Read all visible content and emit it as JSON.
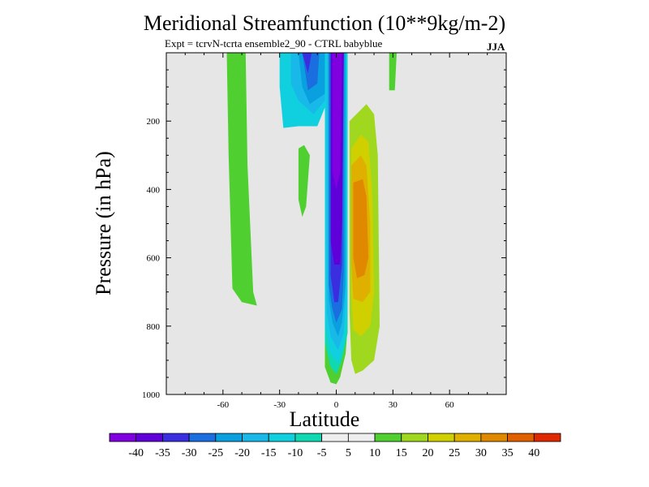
{
  "chart_data": {
    "type": "contour",
    "title": "Meridional Streamfunction (10**9kg/m-2)",
    "subtitle": "Expt = tcrvN-tcrta ensemble2_90 - CTRL babyblue",
    "season": "JJA",
    "xlabel": "Latitude",
    "ylabel": "Pressure (in hPa)",
    "xlim": [
      -90,
      90
    ],
    "ylim": [
      1000,
      0
    ],
    "x_ticks": [
      -60,
      -30,
      0,
      30,
      60
    ],
    "y_ticks": [
      200,
      400,
      600,
      800,
      1000
    ],
    "colorbar": {
      "labels": [
        "-40",
        "-35",
        "-30",
        "-25",
        "-20",
        "-15",
        "-10",
        "-5",
        "5",
        "10",
        "15",
        "20",
        "25",
        "30",
        "35",
        "40"
      ],
      "colors": [
        "#8000e0",
        "#6000d8",
        "#3a2ee0",
        "#1a6ee0",
        "#0aa0e0",
        "#18b8e8",
        "#10d0e0",
        "#10d8b0",
        "#eeeeee",
        "#50d030",
        "#a0d820",
        "#d0d000",
        "#e0b000",
        "#e08800",
        "#e06000",
        "#e02800"
      ]
    },
    "regions": [
      {
        "level": 5,
        "polygon": [
          [
            -58,
            0
          ],
          [
            -48,
            0
          ],
          [
            -47,
            330
          ],
          [
            -44,
            700
          ],
          [
            -42,
            740
          ],
          [
            -50,
            730
          ],
          [
            -55,
            690
          ],
          [
            -57,
            300
          ]
        ]
      },
      {
        "level": 5,
        "polygon": [
          [
            -20,
            280
          ],
          [
            -17,
            270
          ],
          [
            -14,
            300
          ],
          [
            -16,
            450
          ],
          [
            -18,
            480
          ],
          [
            -20,
            430
          ]
        ]
      },
      {
        "level": -10,
        "polygon": [
          [
            -30,
            0
          ],
          [
            -6,
            0
          ],
          [
            -6,
            160
          ],
          [
            -10,
            215
          ],
          [
            -20,
            215
          ],
          [
            -28,
            220
          ],
          [
            -30,
            100
          ]
        ]
      },
      {
        "level": -15,
        "polygon": [
          [
            -24,
            0
          ],
          [
            -6,
            0
          ],
          [
            -6,
            140
          ],
          [
            -12,
            180
          ],
          [
            -20,
            140
          ],
          [
            -24,
            90
          ]
        ]
      },
      {
        "level": -20,
        "polygon": [
          [
            -20,
            0
          ],
          [
            -6,
            0
          ],
          [
            -6,
            120
          ],
          [
            -14,
            150
          ],
          [
            -18,
            100
          ]
        ]
      },
      {
        "level": -25,
        "polygon": [
          [
            -18,
            0
          ],
          [
            -9,
            0
          ],
          [
            -10,
            90
          ],
          [
            -15,
            110
          ]
        ]
      },
      {
        "level": -30,
        "polygon": [
          [
            -18,
            0
          ],
          [
            -13,
            0
          ],
          [
            -15,
            60
          ]
        ]
      },
      {
        "level": 5,
        "polygon": [
          [
            -6,
            0
          ],
          [
            6,
            0
          ],
          [
            6,
            800
          ],
          [
            5,
            880
          ],
          [
            2,
            950
          ],
          [
            0,
            970
          ],
          [
            -3,
            965
          ],
          [
            -6,
            920
          ]
        ]
      },
      {
        "level": -5,
        "polygon": [
          [
            -6,
            0
          ],
          [
            6,
            0
          ],
          [
            6,
            820
          ],
          [
            3,
            900
          ],
          [
            0,
            940
          ],
          [
            -3,
            920
          ],
          [
            -6,
            850
          ]
        ]
      },
      {
        "level": -10,
        "polygon": [
          [
            -6,
            0
          ],
          [
            6,
            0
          ],
          [
            6,
            760
          ],
          [
            4,
            860
          ],
          [
            1,
            910
          ],
          [
            -3,
            880
          ],
          [
            -6,
            800
          ]
        ]
      },
      {
        "level": -15,
        "polygon": [
          [
            -5,
            0
          ],
          [
            5,
            0
          ],
          [
            5,
            720
          ],
          [
            4,
            820
          ],
          [
            1,
            870
          ],
          [
            -3,
            830
          ],
          [
            -5,
            760
          ]
        ]
      },
      {
        "level": -20,
        "polygon": [
          [
            -4,
            0
          ],
          [
            5,
            0
          ],
          [
            5,
            680
          ],
          [
            3,
            790
          ],
          [
            1,
            830
          ],
          [
            -2,
            790
          ],
          [
            -4,
            720
          ]
        ]
      },
      {
        "level": -25,
        "polygon": [
          [
            -4,
            0
          ],
          [
            4,
            0
          ],
          [
            4,
            640
          ],
          [
            3,
            750
          ],
          [
            0,
            790
          ],
          [
            -2,
            750
          ],
          [
            -4,
            680
          ]
        ]
      },
      {
        "level": -30,
        "polygon": [
          [
            -3,
            0
          ],
          [
            4,
            0
          ],
          [
            3,
            620
          ],
          [
            1,
            730
          ],
          [
            -1,
            730
          ],
          [
            -3,
            650
          ]
        ]
      },
      {
        "level": -35,
        "polygon": [
          [
            -3,
            0
          ],
          [
            4,
            0
          ],
          [
            3,
            500
          ],
          [
            2,
            620
          ],
          [
            -1,
            620
          ],
          [
            -3,
            550
          ]
        ]
      },
      {
        "level": -40,
        "polygon": [
          [
            -2,
            0
          ],
          [
            3,
            0
          ],
          [
            2,
            350
          ],
          [
            0,
            400
          ],
          [
            -2,
            350
          ]
        ]
      },
      {
        "level": 5,
        "polygon": [
          [
            28,
            0
          ],
          [
            32,
            0
          ],
          [
            31,
            110
          ],
          [
            28,
            110
          ]
        ]
      },
      {
        "level": 10,
        "polygon": [
          [
            7,
            200
          ],
          [
            16,
            150
          ],
          [
            20,
            180
          ],
          [
            22,
            300
          ],
          [
            23,
            800
          ],
          [
            20,
            900
          ],
          [
            14,
            930
          ],
          [
            10,
            940
          ],
          [
            8,
            900
          ],
          [
            7,
            760
          ]
        ]
      },
      {
        "level": 15,
        "polygon": [
          [
            8,
            280
          ],
          [
            13,
            240
          ],
          [
            17,
            260
          ],
          [
            19,
            400
          ],
          [
            20,
            700
          ],
          [
            18,
            800
          ],
          [
            13,
            830
          ],
          [
            9,
            810
          ],
          [
            8,
            700
          ]
        ]
      },
      {
        "level": 20,
        "polygon": [
          [
            8,
            330
          ],
          [
            13,
            300
          ],
          [
            16,
            330
          ],
          [
            18,
            500
          ],
          [
            18,
            700
          ],
          [
            14,
            730
          ],
          [
            9,
            720
          ],
          [
            8,
            620
          ]
        ]
      },
      {
        "level": 25,
        "polygon": [
          [
            9,
            380
          ],
          [
            14,
            370
          ],
          [
            16,
            420
          ],
          [
            17,
            600
          ],
          [
            15,
            650
          ],
          [
            11,
            660
          ],
          [
            9,
            600
          ]
        ]
      }
    ]
  }
}
